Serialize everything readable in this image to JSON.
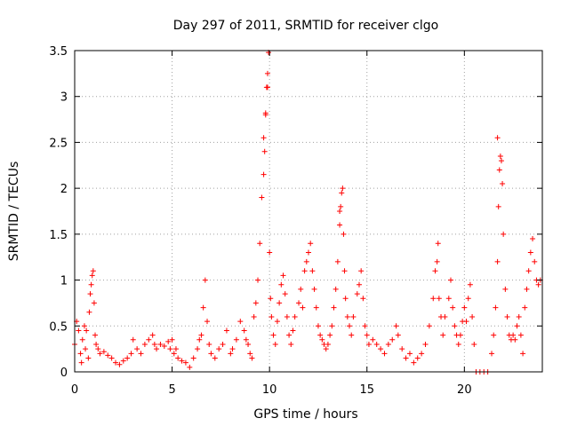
{
  "chart_data": {
    "type": "scatter",
    "title": "Day 297 of 2011, SRMTID for receiver clgo",
    "xlabel": "GPS time / hours",
    "ylabel": "SRMTID / TECUs",
    "xlim": [
      0,
      24
    ],
    "ylim": [
      0,
      3.5
    ],
    "grid": true,
    "marker": "+",
    "color": "#ff0000",
    "xticks": [
      0,
      5,
      10,
      15,
      20
    ],
    "xtick_labels": [
      "0",
      "5",
      "10",
      "15",
      "20"
    ],
    "yticks": [
      0,
      0.5,
      1,
      1.5,
      2,
      2.5,
      3,
      3.5
    ],
    "ytick_labels": [
      "0",
      "0.5",
      "1",
      "1.5",
      "2",
      "2.5",
      "3",
      "3.5"
    ],
    "series": [
      {
        "name": "SRMTID",
        "points": [
          [
            0.0,
            0.3
          ],
          [
            0.1,
            0.55
          ],
          [
            0.2,
            0.45
          ],
          [
            0.3,
            0.2
          ],
          [
            0.35,
            0.1
          ],
          [
            0.4,
            0.35
          ],
          [
            0.5,
            0.5
          ],
          [
            0.55,
            0.25
          ],
          [
            0.6,
            0.45
          ],
          [
            0.7,
            0.15
          ],
          [
            0.75,
            0.65
          ],
          [
            0.8,
            0.85
          ],
          [
            0.85,
            0.95
          ],
          [
            0.9,
            1.05
          ],
          [
            0.95,
            1.1
          ],
          [
            1.0,
            0.75
          ],
          [
            1.05,
            0.4
          ],
          [
            1.1,
            0.3
          ],
          [
            1.2,
            0.25
          ],
          [
            1.3,
            0.2
          ],
          [
            1.5,
            0.22
          ],
          [
            1.7,
            0.18
          ],
          [
            1.9,
            0.15
          ],
          [
            2.1,
            0.1
          ],
          [
            2.3,
            0.08
          ],
          [
            2.5,
            0.12
          ],
          [
            2.7,
            0.15
          ],
          [
            2.9,
            0.2
          ],
          [
            3.0,
            0.35
          ],
          [
            3.2,
            0.25
          ],
          [
            3.4,
            0.2
          ],
          [
            3.6,
            0.3
          ],
          [
            3.8,
            0.35
          ],
          [
            4.0,
            0.4
          ],
          [
            4.1,
            0.3
          ],
          [
            4.2,
            0.25
          ],
          [
            4.4,
            0.3
          ],
          [
            4.6,
            0.28
          ],
          [
            4.8,
            0.33
          ],
          [
            4.9,
            0.25
          ],
          [
            5.0,
            0.35
          ],
          [
            5.1,
            0.2
          ],
          [
            5.2,
            0.25
          ],
          [
            5.3,
            0.15
          ],
          [
            5.5,
            0.12
          ],
          [
            5.7,
            0.1
          ],
          [
            5.9,
            0.05
          ],
          [
            6.1,
            0.15
          ],
          [
            6.3,
            0.25
          ],
          [
            6.4,
            0.35
          ],
          [
            6.5,
            0.4
          ],
          [
            6.6,
            0.7
          ],
          [
            6.7,
            1.0
          ],
          [
            6.8,
            0.55
          ],
          [
            6.9,
            0.3
          ],
          [
            7.0,
            0.2
          ],
          [
            7.2,
            0.15
          ],
          [
            7.4,
            0.25
          ],
          [
            7.6,
            0.3
          ],
          [
            7.8,
            0.45
          ],
          [
            8.0,
            0.2
          ],
          [
            8.1,
            0.25
          ],
          [
            8.3,
            0.35
          ],
          [
            8.5,
            0.55
          ],
          [
            8.7,
            0.45
          ],
          [
            8.8,
            0.35
          ],
          [
            8.9,
            0.3
          ],
          [
            9.0,
            0.2
          ],
          [
            9.1,
            0.15
          ],
          [
            9.2,
            0.6
          ],
          [
            9.3,
            0.75
          ],
          [
            9.4,
            1.0
          ],
          [
            9.5,
            1.4
          ],
          [
            9.6,
            1.9
          ],
          [
            9.7,
            2.15
          ],
          [
            9.75,
            2.4
          ],
          [
            9.8,
            2.8
          ],
          [
            9.85,
            3.1
          ],
          [
            9.9,
            3.25
          ],
          [
            9.95,
            3.48
          ],
          [
            10.0,
            1.3
          ],
          [
            10.05,
            0.8
          ],
          [
            10.1,
            0.6
          ],
          [
            10.2,
            0.4
          ],
          [
            10.3,
            0.3
          ],
          [
            10.4,
            0.55
          ],
          [
            10.5,
            0.75
          ],
          [
            10.6,
            0.95
          ],
          [
            10.7,
            1.05
          ],
          [
            10.8,
            0.85
          ],
          [
            10.9,
            0.6
          ],
          [
            11.0,
            0.4
          ],
          [
            11.1,
            0.3
          ],
          [
            11.2,
            0.45
          ],
          [
            11.3,
            0.6
          ],
          [
            11.5,
            0.75
          ],
          [
            11.6,
            0.9
          ],
          [
            11.7,
            0.7
          ],
          [
            11.8,
            1.1
          ],
          [
            11.9,
            1.2
          ],
          [
            12.0,
            1.3
          ],
          [
            12.1,
            1.4
          ],
          [
            12.2,
            1.1
          ],
          [
            12.3,
            0.9
          ],
          [
            12.4,
            0.7
          ],
          [
            12.5,
            0.5
          ],
          [
            12.6,
            0.4
          ],
          [
            12.7,
            0.35
          ],
          [
            12.8,
            0.3
          ],
          [
            12.9,
            0.25
          ],
          [
            13.0,
            0.3
          ],
          [
            13.1,
            0.4
          ],
          [
            13.2,
            0.5
          ],
          [
            13.3,
            0.7
          ],
          [
            13.4,
            0.9
          ],
          [
            13.5,
            1.2
          ],
          [
            13.6,
            1.6
          ],
          [
            13.65,
            1.8
          ],
          [
            13.7,
            1.95
          ],
          [
            13.75,
            2.0
          ],
          [
            13.8,
            1.5
          ],
          [
            13.85,
            1.1
          ],
          [
            13.9,
            0.8
          ],
          [
            14.0,
            0.6
          ],
          [
            14.1,
            0.5
          ],
          [
            14.2,
            0.4
          ],
          [
            14.3,
            0.6
          ],
          [
            14.5,
            0.85
          ],
          [
            14.6,
            0.95
          ],
          [
            14.7,
            1.1
          ],
          [
            14.8,
            0.8
          ],
          [
            14.9,
            0.5
          ],
          [
            15.0,
            0.4
          ],
          [
            15.1,
            0.3
          ],
          [
            15.3,
            0.35
          ],
          [
            15.5,
            0.3
          ],
          [
            15.7,
            0.25
          ],
          [
            15.9,
            0.2
          ],
          [
            16.1,
            0.3
          ],
          [
            16.3,
            0.35
          ],
          [
            16.5,
            0.5
          ],
          [
            16.6,
            0.4
          ],
          [
            16.8,
            0.25
          ],
          [
            17.0,
            0.15
          ],
          [
            17.2,
            0.2
          ],
          [
            17.4,
            0.1
          ],
          [
            17.6,
            0.15
          ],
          [
            17.8,
            0.2
          ],
          [
            18.0,
            0.3
          ],
          [
            18.2,
            0.5
          ],
          [
            18.4,
            0.8
          ],
          [
            18.5,
            1.1
          ],
          [
            18.6,
            1.2
          ],
          [
            18.65,
            1.4
          ],
          [
            18.7,
            0.8
          ],
          [
            18.8,
            0.6
          ],
          [
            18.9,
            0.4
          ],
          [
            19.0,
            0.6
          ],
          [
            19.2,
            0.8
          ],
          [
            19.3,
            1.0
          ],
          [
            19.4,
            0.7
          ],
          [
            19.5,
            0.5
          ],
          [
            19.6,
            0.4
          ],
          [
            19.7,
            0.3
          ],
          [
            19.8,
            0.4
          ],
          [
            19.9,
            0.55
          ],
          [
            20.0,
            0.7
          ],
          [
            20.1,
            0.55
          ],
          [
            20.2,
            0.8
          ],
          [
            20.3,
            0.95
          ],
          [
            20.4,
            0.6
          ],
          [
            20.5,
            0.3
          ],
          [
            20.6,
            0.0
          ],
          [
            20.8,
            0.0
          ],
          [
            21.0,
            0.0
          ],
          [
            21.2,
            0.0
          ],
          [
            21.4,
            0.2
          ],
          [
            21.5,
            0.4
          ],
          [
            21.6,
            0.7
          ],
          [
            21.7,
            1.2
          ],
          [
            21.75,
            1.8
          ],
          [
            21.8,
            2.2
          ],
          [
            21.85,
            2.35
          ],
          [
            21.9,
            2.3
          ],
          [
            21.95,
            2.05
          ],
          [
            22.0,
            1.5
          ],
          [
            22.1,
            0.9
          ],
          [
            22.2,
            0.6
          ],
          [
            22.3,
            0.4
          ],
          [
            22.4,
            0.35
          ],
          [
            22.5,
            0.4
          ],
          [
            22.6,
            0.35
          ],
          [
            22.7,
            0.5
          ],
          [
            22.8,
            0.6
          ],
          [
            22.9,
            0.4
          ],
          [
            23.0,
            0.2
          ],
          [
            23.1,
            0.7
          ],
          [
            23.2,
            0.9
          ],
          [
            23.3,
            1.1
          ],
          [
            23.4,
            1.3
          ],
          [
            23.5,
            1.45
          ],
          [
            23.6,
            1.2
          ],
          [
            23.7,
            1.0
          ],
          [
            23.8,
            0.95
          ],
          [
            23.9,
            1.0
          ],
          [
            9.7,
            2.55
          ],
          [
            21.7,
            2.55
          ],
          [
            9.8,
            2.82
          ],
          [
            13.6,
            1.75
          ],
          [
            9.9,
            3.1
          ]
        ]
      }
    ]
  }
}
